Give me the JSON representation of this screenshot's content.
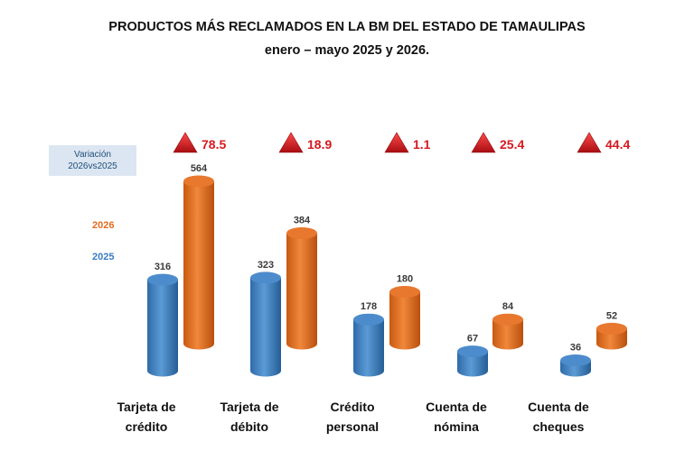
{
  "title": "PRODUCTOS MÁS RECLAMADOS EN LA BM DEL ESTADO DE TAMAULIPAS",
  "subtitle": "enero – mayo 2025 y 2026.",
  "variation_box": {
    "line1": "Variación",
    "line2": "2026vs2025"
  },
  "colors": {
    "s2025": "#3a7dc2",
    "s2026": "#e36c1e",
    "variation": "#d6181f"
  },
  "chart_data": {
    "type": "bar",
    "categories": [
      [
        "Tarjeta de",
        "crédito"
      ],
      [
        "Tarjeta de",
        "débito"
      ],
      [
        "Crédito",
        "personal"
      ],
      [
        "Cuenta de",
        "nómina"
      ],
      [
        "Cuenta de",
        "cheques"
      ]
    ],
    "series": [
      {
        "name": "2025",
        "values": [
          316,
          323,
          178,
          67,
          36
        ]
      },
      {
        "name": "2026",
        "values": [
          564,
          384,
          180,
          84,
          52
        ]
      }
    ],
    "variation": [
      "78.5",
      "18.9",
      "1.1",
      "25.4",
      "44.4"
    ],
    "variation_icon": "triangle-up-icon",
    "legend_position": "left",
    "grid": false
  }
}
